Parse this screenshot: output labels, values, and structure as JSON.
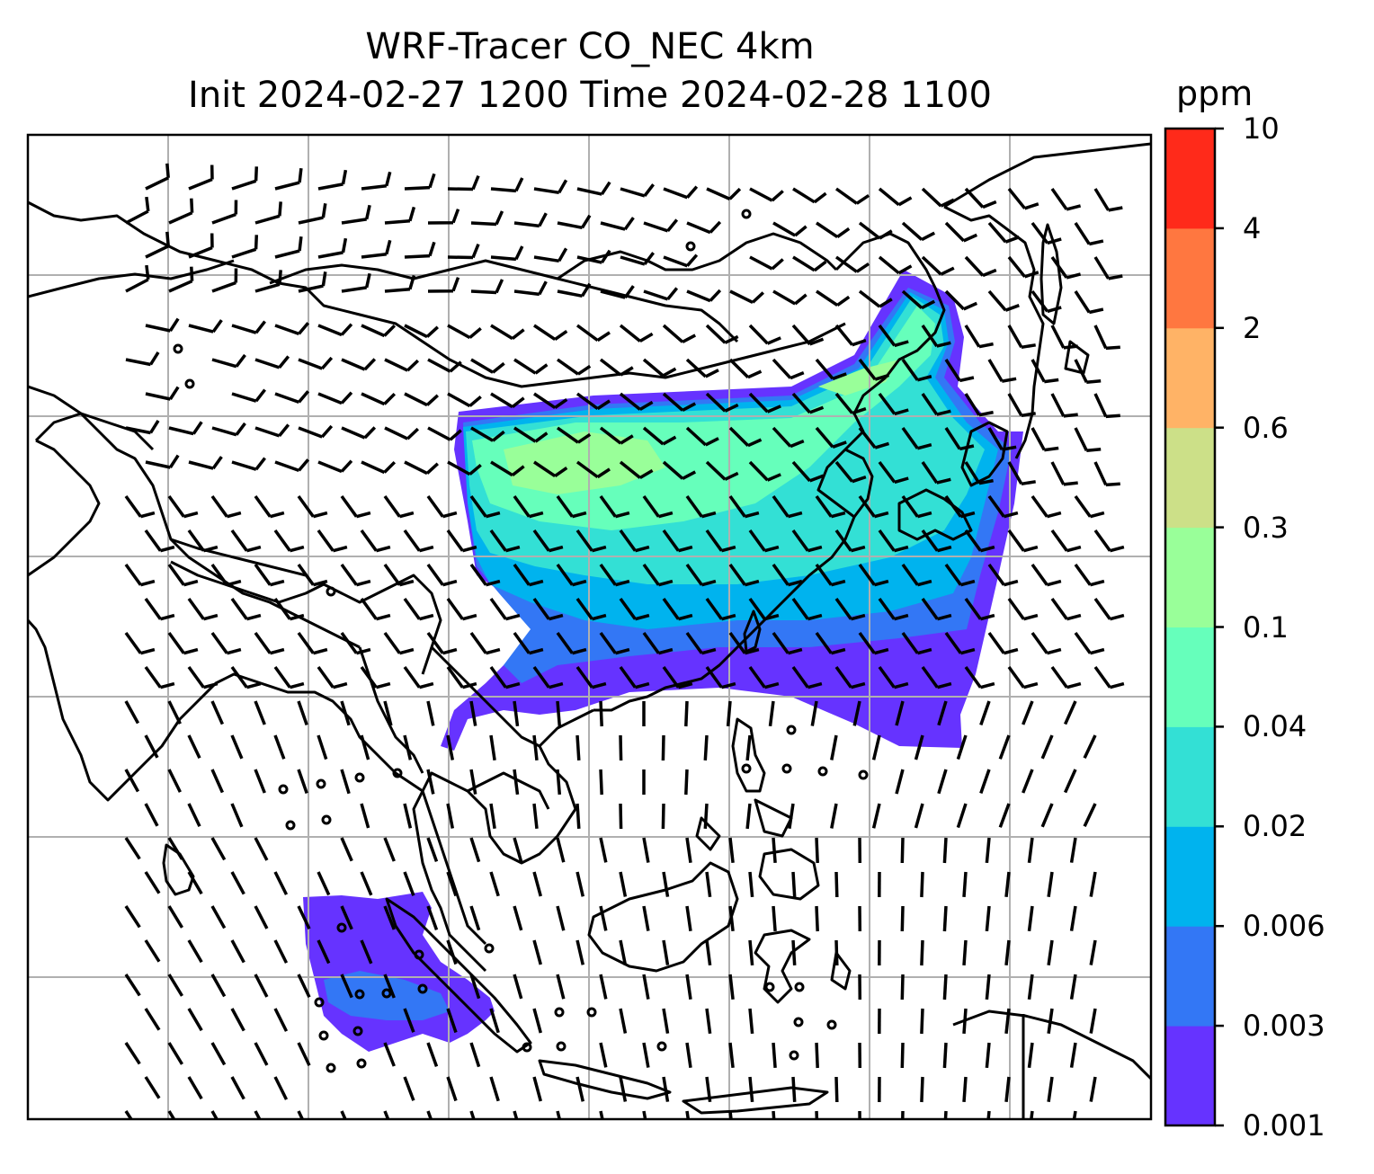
{
  "title": {
    "line1": "WRF-Tracer CO_NEC 4km",
    "line2": "Init 2024-02-27 1200 Time 2024-02-28 1100"
  },
  "colorbar": {
    "unit": "ppm",
    "levels": [
      "0.001",
      "0.003",
      "0.006",
      "0.02",
      "0.04",
      "0.1",
      "0.3",
      "0.6",
      "2",
      "4",
      "10"
    ],
    "colors": [
      "#6633ff",
      "#3377f5",
      "#00b3ee",
      "#33e0d5",
      "#66ffbb",
      "#99ff99",
      "#cce088",
      "#ffb366",
      "#ff7740",
      "#ff2a1a"
    ]
  },
  "map": {
    "gridlines": true,
    "coastline_color": "#000000",
    "grid_color": "#b0b0b0",
    "wind_barbs": true
  }
}
